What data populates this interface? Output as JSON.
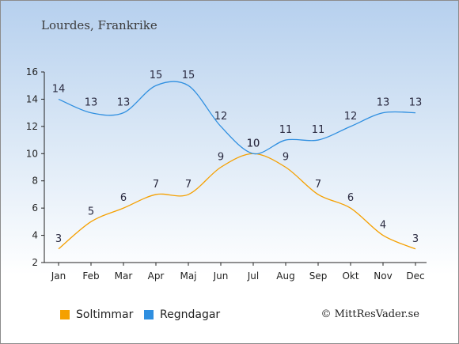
{
  "title": "Lourdes, Frankrike",
  "credit": "© MittResVader.se",
  "chart_data": {
    "type": "line",
    "categories": [
      "Jan",
      "Feb",
      "Mar",
      "Apr",
      "Maj",
      "Jun",
      "Jul",
      "Aug",
      "Sep",
      "Okt",
      "Nov",
      "Dec"
    ],
    "ylim": [
      2,
      16
    ],
    "yticks": [
      2,
      4,
      6,
      8,
      10,
      12,
      14,
      16
    ],
    "grid": false,
    "legend_position": "bottom",
    "series": [
      {
        "name": "Soltimmar",
        "color": "#f5a000",
        "values": [
          3,
          5,
          6,
          7,
          7,
          9,
          10,
          9,
          7,
          6,
          4,
          3
        ]
      },
      {
        "name": "Regndagar",
        "color": "#2f8fe0",
        "values": [
          14,
          13,
          13,
          15,
          15,
          12,
          10,
          11,
          11,
          12,
          13,
          13
        ]
      }
    ]
  }
}
